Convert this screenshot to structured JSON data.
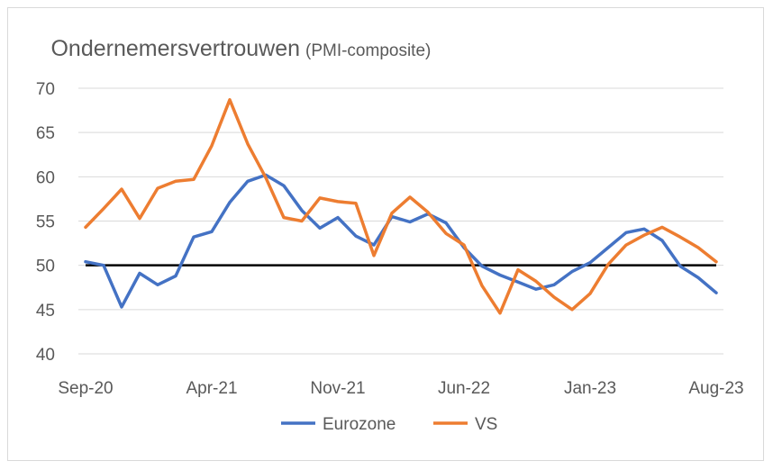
{
  "chart_data": {
    "type": "line",
    "title": "Ondernemersvertrouwen",
    "subtitle": "(PMI-composite)",
    "xlabel": "",
    "ylabel": "",
    "ylim": [
      40,
      70
    ],
    "yticks": [
      40,
      45,
      50,
      55,
      60,
      65,
      70
    ],
    "x": [
      "Sep-20",
      "Oct-20",
      "Nov-20",
      "Dec-20",
      "Jan-21",
      "Feb-21",
      "Mar-21",
      "Apr-21",
      "May-21",
      "Jun-21",
      "Jul-21",
      "Aug-21",
      "Sep-21",
      "Oct-21",
      "Nov-21",
      "Dec-21",
      "Jan-22",
      "Feb-22",
      "Mar-22",
      "Apr-22",
      "May-22",
      "Jun-22",
      "Jul-22",
      "Aug-22",
      "Sep-22",
      "Oct-22",
      "Nov-22",
      "Dec-22",
      "Jan-23",
      "Feb-23",
      "Mar-23",
      "Apr-23",
      "May-23",
      "Jun-23",
      "Jul-23",
      "Aug-23"
    ],
    "xtick_labels": [
      "Sep-20",
      "Apr-21",
      "Nov-21",
      "Jun-22",
      "Jan-23",
      "Aug-23"
    ],
    "reference_line": 50,
    "legend_position": "bottom",
    "grid": true,
    "series": [
      {
        "name": "Eurozone",
        "color": "#4472c4",
        "values": [
          50.4,
          50.0,
          45.3,
          49.1,
          47.8,
          48.8,
          53.2,
          53.8,
          57.1,
          59.5,
          60.2,
          59.0,
          56.2,
          54.2,
          55.4,
          53.3,
          52.3,
          55.5,
          54.9,
          55.8,
          54.8,
          52.0,
          49.9,
          48.9,
          48.1,
          47.3,
          47.8,
          49.3,
          50.3,
          52.0,
          53.7,
          54.1,
          52.8,
          49.9,
          48.6,
          46.9
        ]
      },
      {
        "name": "VS",
        "color": "#ed7d31",
        "values": [
          54.3,
          56.4,
          58.6,
          55.3,
          58.7,
          59.5,
          59.7,
          63.5,
          68.7,
          63.7,
          59.9,
          55.4,
          55.0,
          57.6,
          57.2,
          57.0,
          51.1,
          55.9,
          57.7,
          56.0,
          53.6,
          52.3,
          47.7,
          44.6,
          49.5,
          48.2,
          46.4,
          45.0,
          46.8,
          50.1,
          52.3,
          53.4,
          54.3,
          53.2,
          52.0,
          50.4
        ]
      }
    ]
  }
}
